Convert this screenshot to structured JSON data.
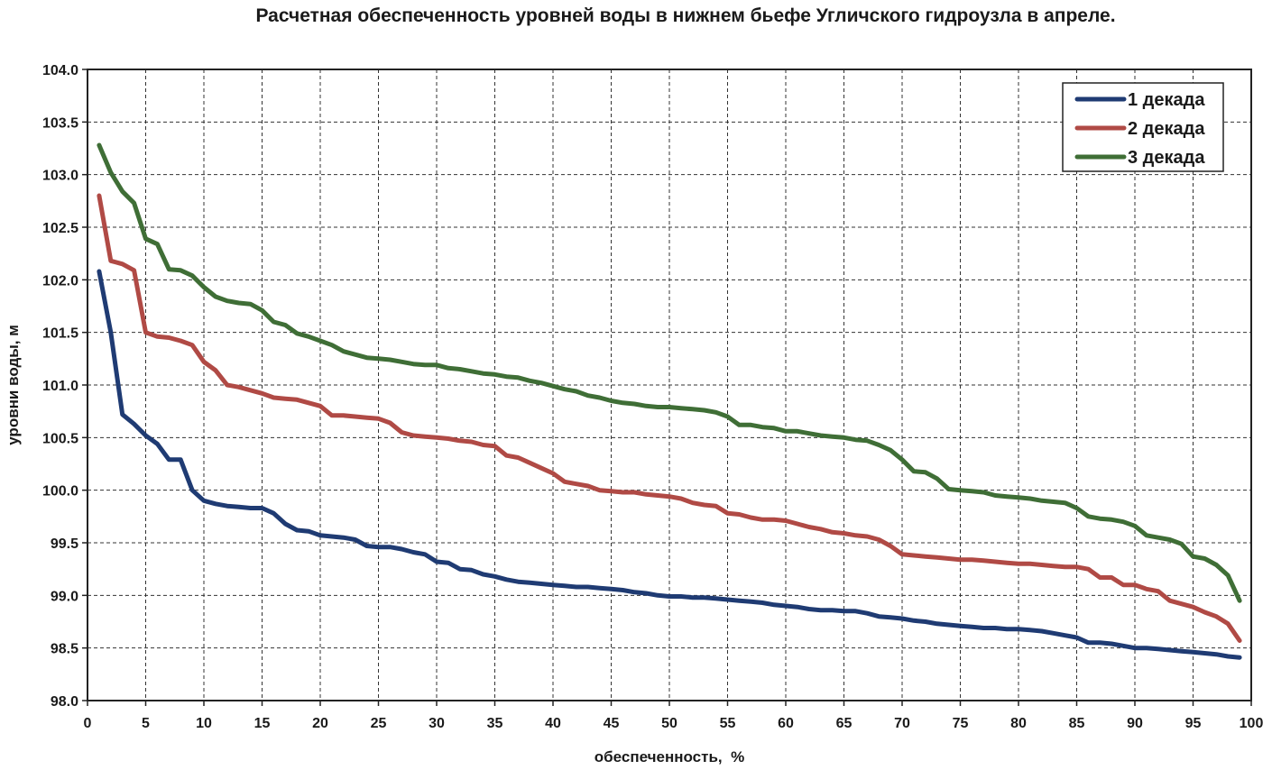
{
  "chart_data": {
    "type": "line",
    "title": "Расчетная обеспеченность уровней воды в нижнем бьефе Угличского гидроузла в апреле.",
    "xlabel": "обеспеченность,  %",
    "ylabel": "уровни воды, м",
    "xlim": [
      0,
      100
    ],
    "ylim": [
      98.0,
      104.0
    ],
    "x_ticks": [
      "0",
      "5",
      "10",
      "15",
      "20",
      "25",
      "30",
      "35",
      "40",
      "45",
      "50",
      "55",
      "60",
      "65",
      "70",
      "75",
      "80",
      "85",
      "90",
      "95",
      "100"
    ],
    "y_ticks": [
      "98.0",
      "98.5",
      "99.0",
      "99.5",
      "100.0",
      "100.5",
      "101.0",
      "101.5",
      "102.0",
      "102.5",
      "103.0",
      "103.5",
      "104.0"
    ],
    "grid": true,
    "legend_position": "top-right",
    "series": [
      {
        "name": "1 декада",
        "color": "#1f3b73",
        "points": [
          [
            1,
            102.08
          ],
          [
            2,
            101.5
          ],
          [
            3,
            100.72
          ],
          [
            4,
            100.63
          ],
          [
            5,
            100.52
          ],
          [
            6,
            100.44
          ],
          [
            7,
            100.29
          ],
          [
            8,
            100.29
          ],
          [
            9,
            100.0
          ],
          [
            10,
            99.9
          ],
          [
            11,
            99.87
          ],
          [
            12,
            99.85
          ],
          [
            13,
            99.84
          ],
          [
            14,
            99.83
          ],
          [
            15,
            99.83
          ],
          [
            16,
            99.78
          ],
          [
            17,
            99.68
          ],
          [
            18,
            99.62
          ],
          [
            19,
            99.61
          ],
          [
            20,
            99.57
          ],
          [
            21,
            99.56
          ],
          [
            22,
            99.55
          ],
          [
            23,
            99.53
          ],
          [
            24,
            99.47
          ],
          [
            25,
            99.46
          ],
          [
            26,
            99.46
          ],
          [
            27,
            99.44
          ],
          [
            28,
            99.41
          ],
          [
            29,
            99.39
          ],
          [
            30,
            99.32
          ],
          [
            31,
            99.31
          ],
          [
            32,
            99.25
          ],
          [
            33,
            99.24
          ],
          [
            34,
            99.2
          ],
          [
            35,
            99.18
          ],
          [
            36,
            99.15
          ],
          [
            37,
            99.13
          ],
          [
            38,
            99.12
          ],
          [
            39,
            99.11
          ],
          [
            40,
            99.1
          ],
          [
            41,
            99.09
          ],
          [
            42,
            99.08
          ],
          [
            43,
            99.08
          ],
          [
            44,
            99.07
          ],
          [
            45,
            99.06
          ],
          [
            46,
            99.05
          ],
          [
            47,
            99.03
          ],
          [
            48,
            99.02
          ],
          [
            49,
            99.0
          ],
          [
            50,
            98.99
          ],
          [
            51,
            98.99
          ],
          [
            52,
            98.98
          ],
          [
            53,
            98.98
          ],
          [
            54,
            98.97
          ],
          [
            55,
            98.96
          ],
          [
            56,
            98.95
          ],
          [
            57,
            98.94
          ],
          [
            58,
            98.93
          ],
          [
            59,
            98.91
          ],
          [
            60,
            98.9
          ],
          [
            61,
            98.89
          ],
          [
            62,
            98.87
          ],
          [
            63,
            98.86
          ],
          [
            64,
            98.86
          ],
          [
            65,
            98.85
          ],
          [
            66,
            98.85
          ],
          [
            67,
            98.83
          ],
          [
            68,
            98.8
          ],
          [
            69,
            98.79
          ],
          [
            70,
            98.78
          ],
          [
            71,
            98.76
          ],
          [
            72,
            98.75
          ],
          [
            73,
            98.73
          ],
          [
            74,
            98.72
          ],
          [
            75,
            98.71
          ],
          [
            76,
            98.7
          ],
          [
            77,
            98.69
          ],
          [
            78,
            98.69
          ],
          [
            79,
            98.68
          ],
          [
            80,
            98.68
          ],
          [
            81,
            98.67
          ],
          [
            82,
            98.66
          ],
          [
            83,
            98.64
          ],
          [
            84,
            98.62
          ],
          [
            85,
            98.6
          ],
          [
            86,
            98.55
          ],
          [
            87,
            98.55
          ],
          [
            88,
            98.54
          ],
          [
            89,
            98.52
          ],
          [
            90,
            98.5
          ],
          [
            91,
            98.5
          ],
          [
            92,
            98.49
          ],
          [
            93,
            98.48
          ],
          [
            94,
            98.47
          ],
          [
            95,
            98.46
          ],
          [
            96,
            98.45
          ],
          [
            97,
            98.44
          ],
          [
            98,
            98.42
          ],
          [
            99,
            98.41
          ]
        ]
      },
      {
        "name": "2 декада",
        "color": "#b04a45",
        "points": [
          [
            1,
            102.8
          ],
          [
            2,
            102.18
          ],
          [
            3,
            102.15
          ],
          [
            4,
            102.09
          ],
          [
            5,
            101.5
          ],
          [
            6,
            101.46
          ],
          [
            7,
            101.45
          ],
          [
            8,
            101.42
          ],
          [
            9,
            101.38
          ],
          [
            10,
            101.22
          ],
          [
            11,
            101.14
          ],
          [
            12,
            101.0
          ],
          [
            13,
            100.98
          ],
          [
            14,
            100.95
          ],
          [
            15,
            100.92
          ],
          [
            16,
            100.88
          ],
          [
            17,
            100.87
          ],
          [
            18,
            100.86
          ],
          [
            19,
            100.83
          ],
          [
            20,
            100.8
          ],
          [
            21,
            100.71
          ],
          [
            22,
            100.71
          ],
          [
            23,
            100.7
          ],
          [
            24,
            100.69
          ],
          [
            25,
            100.68
          ],
          [
            26,
            100.64
          ],
          [
            27,
            100.55
          ],
          [
            28,
            100.52
          ],
          [
            29,
            100.51
          ],
          [
            30,
            100.5
          ],
          [
            31,
            100.49
          ],
          [
            32,
            100.47
          ],
          [
            33,
            100.46
          ],
          [
            34,
            100.43
          ],
          [
            35,
            100.42
          ],
          [
            36,
            100.33
          ],
          [
            37,
            100.31
          ],
          [
            38,
            100.26
          ],
          [
            39,
            100.21
          ],
          [
            40,
            100.16
          ],
          [
            41,
            100.08
          ],
          [
            42,
            100.06
          ],
          [
            43,
            100.04
          ],
          [
            44,
            100.0
          ],
          [
            45,
            99.99
          ],
          [
            46,
            99.98
          ],
          [
            47,
            99.98
          ],
          [
            48,
            99.96
          ],
          [
            49,
            99.95
          ],
          [
            50,
            99.94
          ],
          [
            51,
            99.92
          ],
          [
            52,
            99.88
          ],
          [
            53,
            99.86
          ],
          [
            54,
            99.85
          ],
          [
            55,
            99.78
          ],
          [
            56,
            99.77
          ],
          [
            57,
            99.74
          ],
          [
            58,
            99.72
          ],
          [
            59,
            99.72
          ],
          [
            60,
            99.71
          ],
          [
            61,
            99.68
          ],
          [
            62,
            99.65
          ],
          [
            63,
            99.63
          ],
          [
            64,
            99.6
          ],
          [
            65,
            99.59
          ],
          [
            66,
            99.57
          ],
          [
            67,
            99.56
          ],
          [
            68,
            99.53
          ],
          [
            69,
            99.47
          ],
          [
            70,
            99.39
          ],
          [
            71,
            99.38
          ],
          [
            72,
            99.37
          ],
          [
            73,
            99.36
          ],
          [
            74,
            99.35
          ],
          [
            75,
            99.34
          ],
          [
            76,
            99.34
          ],
          [
            77,
            99.33
          ],
          [
            78,
            99.32
          ],
          [
            79,
            99.31
          ],
          [
            80,
            99.3
          ],
          [
            81,
            99.3
          ],
          [
            82,
            99.29
          ],
          [
            83,
            99.28
          ],
          [
            84,
            99.27
          ],
          [
            85,
            99.27
          ],
          [
            86,
            99.25
          ],
          [
            87,
            99.17
          ],
          [
            88,
            99.17
          ],
          [
            89,
            99.1
          ],
          [
            90,
            99.1
          ],
          [
            91,
            99.06
          ],
          [
            92,
            99.04
          ],
          [
            93,
            98.95
          ],
          [
            94,
            98.92
          ],
          [
            95,
            98.89
          ],
          [
            96,
            98.84
          ],
          [
            97,
            98.8
          ],
          [
            98,
            98.73
          ],
          [
            99,
            98.57
          ]
        ]
      },
      {
        "name": "3 декада",
        "color": "#3f6e36",
        "points": [
          [
            1,
            103.28
          ],
          [
            2,
            103.02
          ],
          [
            3,
            102.84
          ],
          [
            4,
            102.73
          ],
          [
            5,
            102.39
          ],
          [
            6,
            102.34
          ],
          [
            7,
            102.1
          ],
          [
            8,
            102.09
          ],
          [
            9,
            102.04
          ],
          [
            10,
            101.93
          ],
          [
            11,
            101.84
          ],
          [
            12,
            101.8
          ],
          [
            13,
            101.78
          ],
          [
            14,
            101.77
          ],
          [
            15,
            101.71
          ],
          [
            16,
            101.6
          ],
          [
            17,
            101.57
          ],
          [
            18,
            101.49
          ],
          [
            19,
            101.46
          ],
          [
            20,
            101.42
          ],
          [
            21,
            101.38
          ],
          [
            22,
            101.32
          ],
          [
            23,
            101.29
          ],
          [
            24,
            101.26
          ],
          [
            25,
            101.25
          ],
          [
            26,
            101.24
          ],
          [
            27,
            101.22
          ],
          [
            28,
            101.2
          ],
          [
            29,
            101.19
          ],
          [
            30,
            101.19
          ],
          [
            31,
            101.16
          ],
          [
            32,
            101.15
          ],
          [
            33,
            101.13
          ],
          [
            34,
            101.11
          ],
          [
            35,
            101.1
          ],
          [
            36,
            101.08
          ],
          [
            37,
            101.07
          ],
          [
            38,
            101.04
          ],
          [
            39,
            101.02
          ],
          [
            40,
            100.99
          ],
          [
            41,
            100.96
          ],
          [
            42,
            100.94
          ],
          [
            43,
            100.9
          ],
          [
            44,
            100.88
          ],
          [
            45,
            100.85
          ],
          [
            46,
            100.83
          ],
          [
            47,
            100.82
          ],
          [
            48,
            100.8
          ],
          [
            49,
            100.79
          ],
          [
            50,
            100.79
          ],
          [
            51,
            100.78
          ],
          [
            52,
            100.77
          ],
          [
            53,
            100.76
          ],
          [
            54,
            100.74
          ],
          [
            55,
            100.7
          ],
          [
            56,
            100.62
          ],
          [
            57,
            100.62
          ],
          [
            58,
            100.6
          ],
          [
            59,
            100.59
          ],
          [
            60,
            100.56
          ],
          [
            61,
            100.56
          ],
          [
            62,
            100.54
          ],
          [
            63,
            100.52
          ],
          [
            64,
            100.51
          ],
          [
            65,
            100.5
          ],
          [
            66,
            100.48
          ],
          [
            67,
            100.47
          ],
          [
            68,
            100.43
          ],
          [
            69,
            100.38
          ],
          [
            70,
            100.29
          ],
          [
            71,
            100.18
          ],
          [
            72,
            100.17
          ],
          [
            73,
            100.11
          ],
          [
            74,
            100.01
          ],
          [
            75,
            100.0
          ],
          [
            76,
            99.99
          ],
          [
            77,
            99.98
          ],
          [
            78,
            99.95
          ],
          [
            79,
            99.94
          ],
          [
            80,
            99.93
          ],
          [
            81,
            99.92
          ],
          [
            82,
            99.9
          ],
          [
            83,
            99.89
          ],
          [
            84,
            99.88
          ],
          [
            85,
            99.83
          ],
          [
            86,
            99.75
          ],
          [
            87,
            99.73
          ],
          [
            88,
            99.72
          ],
          [
            89,
            99.7
          ],
          [
            90,
            99.66
          ],
          [
            91,
            99.57
          ],
          [
            92,
            99.55
          ],
          [
            93,
            99.53
          ],
          [
            94,
            99.49
          ],
          [
            95,
            99.37
          ],
          [
            96,
            99.35
          ],
          [
            97,
            99.29
          ],
          [
            98,
            99.19
          ],
          [
            99,
            98.95
          ]
        ]
      }
    ]
  }
}
